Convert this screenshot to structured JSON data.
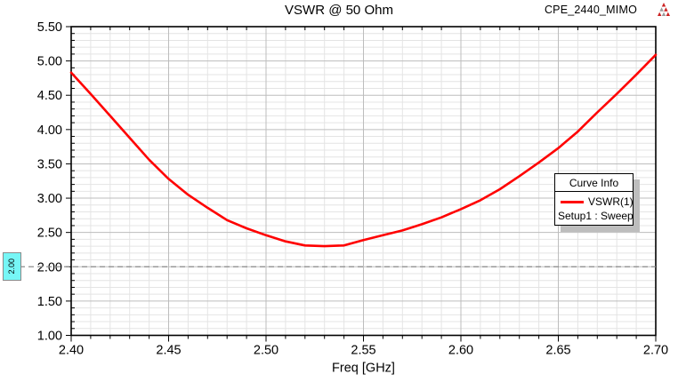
{
  "window": {
    "project_label": "CPE_2440_MIMO"
  },
  "logo": {
    "name": "ansoft-logo",
    "primary_color": "#cc2222",
    "secondary_color": "#9a9a9a"
  },
  "chart_data": {
    "type": "line",
    "title": "VSWR @ 50 Ohm",
    "xlabel": "Freq [GHz]",
    "ylabel": "",
    "xlim": [
      2.4,
      2.7
    ],
    "ylim": [
      1.0,
      5.5
    ],
    "x_major_ticks": [
      2.4,
      2.45,
      2.5,
      2.55,
      2.6,
      2.65,
      2.7
    ],
    "x_tick_labels": [
      "2.40",
      "2.45",
      "2.50",
      "2.55",
      "2.60",
      "2.65",
      "2.70"
    ],
    "x_minor_step": 0.01,
    "y_major_ticks": [
      1.0,
      1.5,
      2.0,
      2.5,
      3.0,
      3.5,
      4.0,
      4.5,
      5.0,
      5.5
    ],
    "y_tick_labels": [
      "1.00",
      "1.50",
      "2.00",
      "2.50",
      "3.00",
      "3.50",
      "4.00",
      "4.50",
      "5.00",
      "5.50"
    ],
    "y_minor_step": 0.1,
    "grid": true,
    "legend": {
      "position": "right",
      "title": "Curve Info",
      "series_label": "VSWR(1)",
      "sublabel": "Setup1 : Sweep",
      "swatch_color": "#ff0000"
    },
    "marker_line": {
      "y": 2.0,
      "label": "2.00",
      "style": "dashed",
      "line_color": "#8c8c8c",
      "label_bg_color": "#76f6f6"
    },
    "series": [
      {
        "name": "VSWR(1)",
        "color": "#ff0000",
        "x": [
          2.4,
          2.41,
          2.42,
          2.43,
          2.44,
          2.45,
          2.46,
          2.47,
          2.48,
          2.49,
          2.5,
          2.51,
          2.52,
          2.53,
          2.54,
          2.55,
          2.56,
          2.57,
          2.58,
          2.59,
          2.6,
          2.61,
          2.62,
          2.63,
          2.64,
          2.65,
          2.66,
          2.67,
          2.68,
          2.69,
          2.7
        ],
        "y": [
          4.83,
          4.52,
          4.2,
          3.88,
          3.56,
          3.28,
          3.05,
          2.86,
          2.68,
          2.56,
          2.46,
          2.37,
          2.31,
          2.3,
          2.31,
          2.39,
          2.46,
          2.53,
          2.62,
          2.72,
          2.84,
          2.97,
          3.13,
          3.32,
          3.52,
          3.73,
          3.97,
          4.25,
          4.52,
          4.8,
          5.09
        ]
      }
    ]
  }
}
